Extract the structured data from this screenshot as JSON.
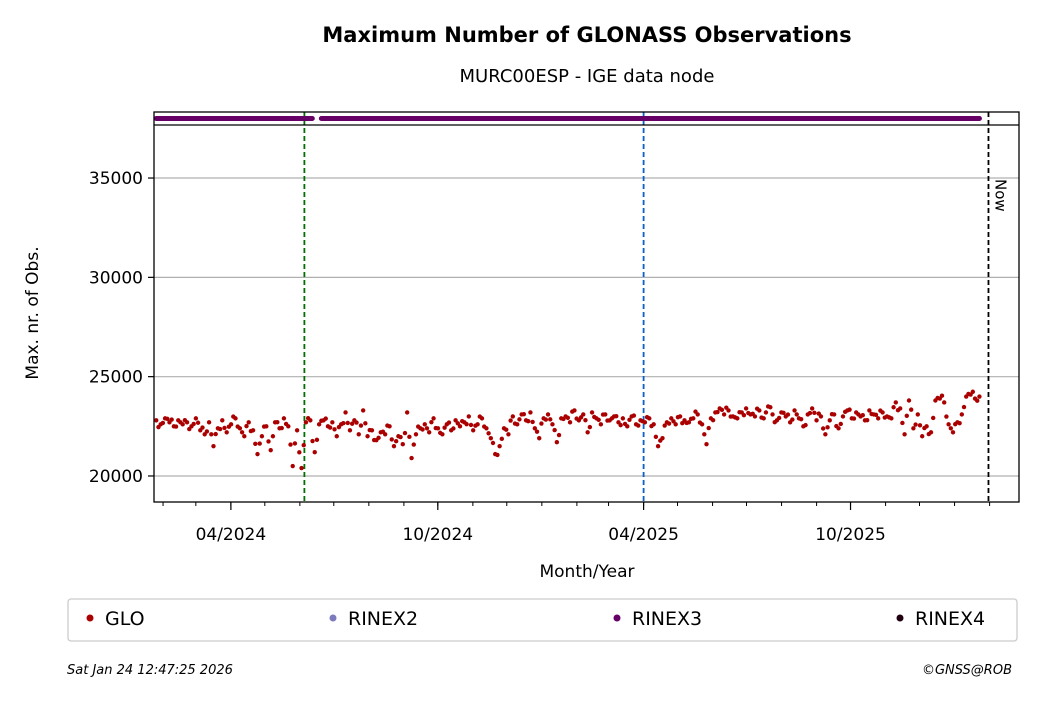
{
  "chart_data": {
    "type": "scatter",
    "title": "Maximum Number of GLONASS Observations",
    "subtitle": "MURC00ESP - IGE data node",
    "xlabel": "Month/Year",
    "ylabel": "Max. nr. of Obs.",
    "xlim": [
      "2024-01-24",
      "2026-02-27"
    ],
    "ylim": [
      18690,
      37670
    ],
    "grid": "horizontal",
    "yticks": [
      20000,
      25000,
      30000,
      35000
    ],
    "xticks": [
      {
        "date": "2024-04-01",
        "label": "04/2024"
      },
      {
        "date": "2024-10-01",
        "label": "10/2024"
      },
      {
        "date": "2025-04-01",
        "label": "04/2025"
      },
      {
        "date": "2025-10-01",
        "label": "10/2025"
      }
    ],
    "vlines": [
      {
        "date": "2024-06-05",
        "color": "#006e00",
        "label": ""
      },
      {
        "date": "2025-04-01",
        "color": "#0a5fcc",
        "label": ""
      },
      {
        "date": "2026-01-31",
        "color": "#000000",
        "label": "Now"
      }
    ],
    "series": [
      {
        "name": "GLO",
        "color": "#aa0000",
        "start": "2024-01-26",
        "end": "2026-01-23",
        "values": [
          22800,
          22600,
          22900,
          22700,
          22500,
          22800,
          22600,
          22700,
          22500,
          22900,
          22300,
          22100,
          22700,
          21500,
          22400,
          22800,
          22200,
          22600,
          22900,
          22400,
          22000,
          22700,
          22300,
          21100,
          22000,
          22500,
          21300,
          22700,
          22400,
          22900,
          22500,
          20500,
          22300,
          20400,
          22700,
          22800,
          21200,
          22600,
          22800,
          22500,
          22700,
          22000,
          22600,
          23200,
          22300,
          22800,
          22100,
          23300,
          22000,
          22300,
          21800,
          22200,
          22100,
          22500,
          21500,
          22000,
          21600,
          23200,
          20900,
          22100,
          22400,
          22600,
          22200,
          22900,
          22400,
          22100,
          22600,
          22300,
          22800,
          22500,
          22700,
          23000,
          22300,
          22600,
          22900,
          22400,
          21900,
          21100,
          21500,
          22400,
          22100,
          23000,
          22600,
          23100,
          22800,
          23200,
          22400,
          21900,
          22900,
          23100,
          22600,
          21700,
          22900,
          23000,
          22700,
          23300,
          22800,
          23100,
          22200,
          23200,
          22900,
          22600,
          23100,
          22800,
          23000,
          22700,
          22900,
          22500,
          23000,
          22600,
          22800,
          22700,
          22900,
          22600,
          21500,
          21900,
          22700,
          22900,
          22600,
          23000,
          22800,
          22700,
          22900,
          23100,
          22600,
          21600,
          22900,
          23200,
          23400,
          23100,
          23300,
          23000,
          22900,
          23200,
          23400,
          23100,
          23000,
          23300,
          22900,
          23500,
          23100,
          22800,
          23200,
          23000,
          22700,
          23300,
          22900,
          22500,
          23100,
          23400,
          22800,
          23000,
          22100,
          22800,
          23100,
          22400,
          23000,
          23300,
          22900,
          23200,
          23000,
          22800,
          23300,
          23100,
          22900,
          23200,
          23000,
          22900,
          23700,
          23400,
          22100,
          23800,
          22400,
          23100,
          22000,
          22500,
          22200,
          23800,
          23900,
          23700,
          22600,
          22200,
          22700,
          23100,
          24000,
          24100,
          23900,
          24000
        ]
      },
      {
        "name": "RINEX2",
        "color": "#7b7bbd",
        "periods": []
      },
      {
        "name": "RINEX3",
        "color": "#660066",
        "periods": [
          [
            "2024-01-26",
            "2024-06-12"
          ],
          [
            "2024-06-20",
            "2026-01-23"
          ]
        ]
      },
      {
        "name": "RINEX4",
        "color": "#200010",
        "periods": []
      }
    ],
    "legend_position": "bottom"
  },
  "footer": {
    "timestamp": "Sat Jan 24 12:47:25 2026",
    "credit": "©GNSS@ROB"
  }
}
